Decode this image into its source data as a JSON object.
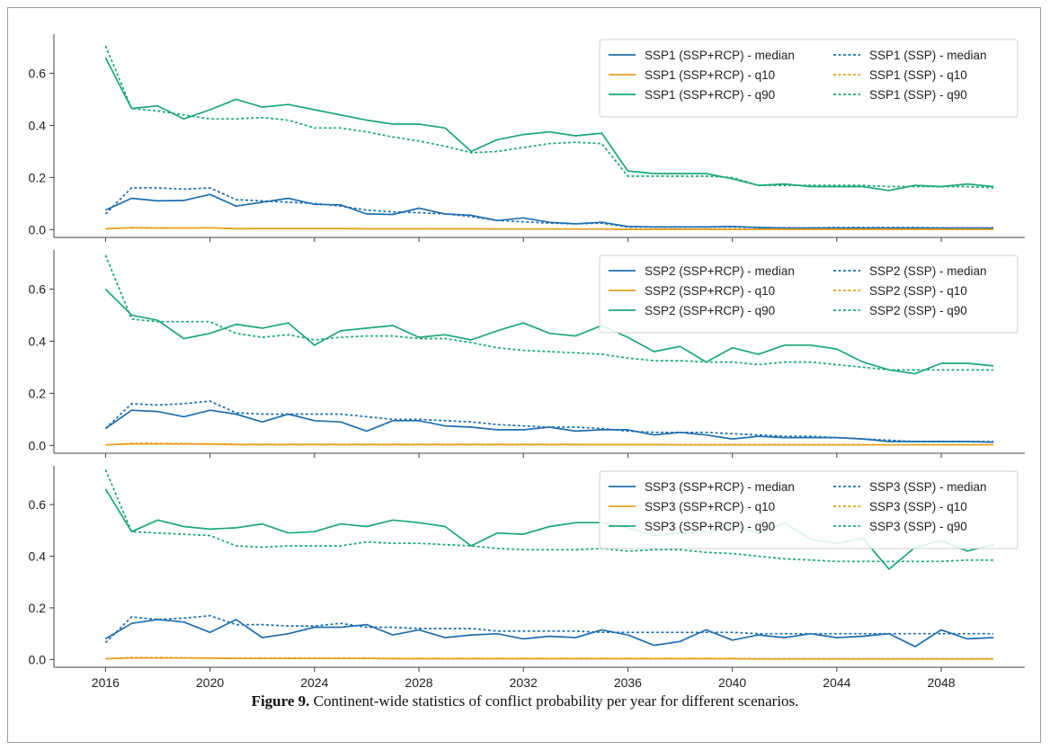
{
  "caption": {
    "label": "Figure 9.",
    "text": "Continent-wide statistics of conflict probability per year for different scenarios."
  },
  "colors": {
    "median": "#1f6fb0",
    "q10": "#e69f1c",
    "q90": "#1aa878"
  },
  "chart_data": [
    {
      "type": "line",
      "title": "",
      "xlabel": "",
      "ylabel": "",
      "x": [
        2016,
        2017,
        2018,
        2019,
        2020,
        2021,
        2022,
        2023,
        2024,
        2025,
        2026,
        2027,
        2028,
        2029,
        2030,
        2031,
        2032,
        2033,
        2034,
        2035,
        2036,
        2037,
        2038,
        2039,
        2040,
        2041,
        2042,
        2043,
        2044,
        2045,
        2046,
        2047,
        2048,
        2049,
        2050
      ],
      "xlim": [
        2014.3,
        2051.2
      ],
      "ylim": [
        -0.03,
        0.75
      ],
      "xticks": [
        2016,
        2020,
        2024,
        2028,
        2032,
        2036,
        2040,
        2044,
        2048
      ],
      "yticks": [
        0.0,
        0.2,
        0.4,
        0.6
      ],
      "ytick_labels": [
        "0.0",
        "0.2",
        "0.4",
        "0.6"
      ],
      "legend_position": "top-right",
      "series": [
        {
          "name": "SSP1 (SSP+RCP) - median",
          "style": "solid",
          "stat": "median",
          "values": [
            0.075,
            0.12,
            0.11,
            0.112,
            0.135,
            0.09,
            0.105,
            0.12,
            0.097,
            0.095,
            0.06,
            0.058,
            0.082,
            0.06,
            0.055,
            0.035,
            0.045,
            0.028,
            0.022,
            0.028,
            0.012,
            0.01,
            0.01,
            0.01,
            0.012,
            0.008,
            0.006,
            0.006,
            0.006,
            0.006,
            0.006,
            0.006,
            0.006,
            0.006,
            0.006
          ]
        },
        {
          "name": "SSP1 (SSP+RCP) - q10",
          "style": "solid",
          "stat": "q10",
          "values": [
            0.003,
            0.007,
            0.006,
            0.006,
            0.007,
            0.003,
            0.004,
            0.004,
            0.004,
            0.004,
            0.003,
            0.003,
            0.003,
            0.003,
            0.003,
            0.002,
            0.002,
            0.002,
            0.002,
            0.002,
            0.001,
            0.001,
            0.001,
            0.001,
            0.001,
            0.001,
            0.001,
            0.001,
            0.001,
            0.001,
            0.001,
            0.001,
            0.001,
            0.001,
            0.001
          ]
        },
        {
          "name": "SSP1 (SSP+RCP) - q90",
          "style": "solid",
          "stat": "q90",
          "values": [
            0.66,
            0.465,
            0.475,
            0.425,
            0.46,
            0.5,
            0.47,
            0.48,
            0.46,
            0.44,
            0.42,
            0.405,
            0.405,
            0.39,
            0.3,
            0.345,
            0.365,
            0.375,
            0.36,
            0.37,
            0.225,
            0.215,
            0.215,
            0.215,
            0.195,
            0.17,
            0.175,
            0.165,
            0.165,
            0.165,
            0.15,
            0.17,
            0.165,
            0.175,
            0.165
          ]
        },
        {
          "name": "SSP1 (SSP) - median",
          "style": "dashed",
          "stat": "median",
          "values": [
            0.06,
            0.16,
            0.16,
            0.155,
            0.16,
            0.115,
            0.11,
            0.105,
            0.1,
            0.09,
            0.075,
            0.068,
            0.065,
            0.06,
            0.05,
            0.035,
            0.03,
            0.025,
            0.022,
            0.025,
            0.01,
            0.01,
            0.01,
            0.01,
            0.01,
            0.008,
            0.007,
            0.007,
            0.008,
            0.008,
            0.008,
            0.008,
            0.007,
            0.007,
            0.007
          ]
        },
        {
          "name": "SSP1 (SSP) - q10",
          "style": "dashed",
          "stat": "q10",
          "values": [
            0.003,
            0.008,
            0.007,
            0.007,
            0.007,
            0.004,
            0.004,
            0.004,
            0.004,
            0.004,
            0.003,
            0.003,
            0.003,
            0.003,
            0.003,
            0.002,
            0.002,
            0.002,
            0.002,
            0.002,
            0.001,
            0.001,
            0.001,
            0.001,
            0.001,
            0.001,
            0.001,
            0.001,
            0.001,
            0.001,
            0.001,
            0.001,
            0.001,
            0.001,
            0.001
          ]
        },
        {
          "name": "SSP1 (SSP) - q90",
          "style": "dashed",
          "stat": "q90",
          "values": [
            0.705,
            0.465,
            0.455,
            0.44,
            0.425,
            0.425,
            0.43,
            0.42,
            0.39,
            0.39,
            0.375,
            0.355,
            0.34,
            0.32,
            0.295,
            0.3,
            0.315,
            0.33,
            0.335,
            0.33,
            0.205,
            0.205,
            0.205,
            0.205,
            0.2,
            0.17,
            0.17,
            0.17,
            0.17,
            0.17,
            0.165,
            0.165,
            0.165,
            0.165,
            0.16
          ]
        }
      ]
    },
    {
      "type": "line",
      "title": "",
      "xlabel": "",
      "ylabel": "",
      "x": [
        2016,
        2017,
        2018,
        2019,
        2020,
        2021,
        2022,
        2023,
        2024,
        2025,
        2026,
        2027,
        2028,
        2029,
        2030,
        2031,
        2032,
        2033,
        2034,
        2035,
        2036,
        2037,
        2038,
        2039,
        2040,
        2041,
        2042,
        2043,
        2044,
        2045,
        2046,
        2047,
        2048,
        2049,
        2050
      ],
      "xlim": [
        2014.3,
        2051.2
      ],
      "ylim": [
        -0.03,
        0.75
      ],
      "xticks": [
        2016,
        2020,
        2024,
        2028,
        2032,
        2036,
        2040,
        2044,
        2048
      ],
      "yticks": [
        0.0,
        0.2,
        0.4,
        0.6
      ],
      "ytick_labels": [
        "0.0",
        "0.2",
        "0.4",
        "0.6"
      ],
      "legend_position": "top-right",
      "series": [
        {
          "name": "SSP2 (SSP+RCP) - median",
          "style": "solid",
          "stat": "median",
          "values": [
            0.065,
            0.135,
            0.13,
            0.11,
            0.135,
            0.12,
            0.09,
            0.12,
            0.095,
            0.09,
            0.055,
            0.095,
            0.095,
            0.075,
            0.07,
            0.06,
            0.06,
            0.07,
            0.055,
            0.06,
            0.06,
            0.04,
            0.05,
            0.04,
            0.025,
            0.035,
            0.03,
            0.03,
            0.03,
            0.025,
            0.015,
            0.015,
            0.015,
            0.015,
            0.012
          ]
        },
        {
          "name": "SSP2 (SSP+RCP) - q10",
          "style": "solid",
          "stat": "q10",
          "values": [
            0.002,
            0.006,
            0.006,
            0.006,
            0.005,
            0.003,
            0.003,
            0.003,
            0.003,
            0.003,
            0.003,
            0.003,
            0.003,
            0.003,
            0.003,
            0.003,
            0.003,
            0.003,
            0.003,
            0.003,
            0.003,
            0.003,
            0.002,
            0.002,
            0.002,
            0.002,
            0.002,
            0.002,
            0.002,
            0.002,
            0.002,
            0.002,
            0.002,
            0.002,
            0.002
          ]
        },
        {
          "name": "SSP2 (SSP+RCP) - q90",
          "style": "solid",
          "stat": "q90",
          "values": [
            0.6,
            0.5,
            0.48,
            0.41,
            0.43,
            0.465,
            0.45,
            0.47,
            0.385,
            0.44,
            0.45,
            0.46,
            0.415,
            0.425,
            0.405,
            0.44,
            0.47,
            0.43,
            0.42,
            0.46,
            0.415,
            0.36,
            0.38,
            0.32,
            0.375,
            0.35,
            0.385,
            0.385,
            0.37,
            0.32,
            0.29,
            0.275,
            0.315,
            0.315,
            0.305
          ]
        },
        {
          "name": "SSP2 (SSP) - median",
          "style": "dashed",
          "stat": "median",
          "values": [
            0.065,
            0.16,
            0.155,
            0.16,
            0.17,
            0.125,
            0.12,
            0.12,
            0.12,
            0.12,
            0.11,
            0.1,
            0.1,
            0.095,
            0.09,
            0.08,
            0.075,
            0.07,
            0.07,
            0.065,
            0.055,
            0.05,
            0.05,
            0.05,
            0.045,
            0.04,
            0.035,
            0.035,
            0.03,
            0.025,
            0.02,
            0.015,
            0.015,
            0.015,
            0.015
          ]
        },
        {
          "name": "SSP2 (SSP) - q10",
          "style": "dashed",
          "stat": "q10",
          "values": [
            0.002,
            0.008,
            0.008,
            0.007,
            0.006,
            0.004,
            0.004,
            0.004,
            0.004,
            0.004,
            0.004,
            0.004,
            0.004,
            0.004,
            0.004,
            0.004,
            0.004,
            0.004,
            0.004,
            0.003,
            0.003,
            0.003,
            0.003,
            0.003,
            0.003,
            0.003,
            0.003,
            0.003,
            0.003,
            0.003,
            0.002,
            0.002,
            0.002,
            0.002,
            0.002
          ]
        },
        {
          "name": "SSP2 (SSP) - q90",
          "style": "dashed",
          "stat": "q90",
          "values": [
            0.73,
            0.485,
            0.475,
            0.475,
            0.475,
            0.43,
            0.415,
            0.425,
            0.405,
            0.415,
            0.42,
            0.42,
            0.41,
            0.41,
            0.395,
            0.375,
            0.365,
            0.36,
            0.355,
            0.35,
            0.335,
            0.325,
            0.325,
            0.32,
            0.32,
            0.31,
            0.32,
            0.32,
            0.31,
            0.3,
            0.29,
            0.29,
            0.29,
            0.29,
            0.29
          ]
        }
      ]
    },
    {
      "type": "line",
      "title": "",
      "xlabel": "",
      "ylabel": "",
      "x": [
        2016,
        2017,
        2018,
        2019,
        2020,
        2021,
        2022,
        2023,
        2024,
        2025,
        2026,
        2027,
        2028,
        2029,
        2030,
        2031,
        2032,
        2033,
        2034,
        2035,
        2036,
        2037,
        2038,
        2039,
        2040,
        2041,
        2042,
        2043,
        2044,
        2045,
        2046,
        2047,
        2048,
        2049,
        2050
      ],
      "xlim": [
        2014.3,
        2051.2
      ],
      "ylim": [
        -0.03,
        0.75
      ],
      "xticks": [
        2016,
        2020,
        2024,
        2028,
        2032,
        2036,
        2040,
        2044,
        2048
      ],
      "xtick_labels": [
        "2016",
        "2020",
        "2024",
        "2028",
        "2032",
        "2036",
        "2040",
        "2044",
        "2048"
      ],
      "yticks": [
        0.0,
        0.2,
        0.4,
        0.6
      ],
      "ytick_labels": [
        "0.0",
        "0.2",
        "0.4",
        "0.6"
      ],
      "legend_position": "top-right",
      "series": [
        {
          "name": "SSP3 (SSP+RCP) - median",
          "style": "solid",
          "stat": "median",
          "values": [
            0.08,
            0.14,
            0.155,
            0.145,
            0.105,
            0.155,
            0.085,
            0.1,
            0.125,
            0.125,
            0.135,
            0.095,
            0.115,
            0.085,
            0.095,
            0.1,
            0.08,
            0.09,
            0.085,
            0.115,
            0.095,
            0.055,
            0.07,
            0.115,
            0.075,
            0.095,
            0.085,
            0.1,
            0.085,
            0.09,
            0.1,
            0.05,
            0.115,
            0.08,
            0.085
          ]
        },
        {
          "name": "SSP3 (SSP+RCP) - q10",
          "style": "solid",
          "stat": "q10",
          "values": [
            0.003,
            0.006,
            0.006,
            0.006,
            0.005,
            0.004,
            0.004,
            0.004,
            0.004,
            0.004,
            0.004,
            0.003,
            0.003,
            0.003,
            0.003,
            0.003,
            0.003,
            0.003,
            0.003,
            0.003,
            0.003,
            0.003,
            0.003,
            0.003,
            0.003,
            0.002,
            0.002,
            0.002,
            0.002,
            0.002,
            0.002,
            0.002,
            0.002,
            0.002,
            0.002
          ]
        },
        {
          "name": "SSP3 (SSP+RCP) - q90",
          "style": "solid",
          "stat": "q90",
          "values": [
            0.66,
            0.495,
            0.54,
            0.515,
            0.505,
            0.51,
            0.525,
            0.49,
            0.495,
            0.525,
            0.515,
            0.54,
            0.53,
            0.515,
            0.44,
            0.49,
            0.485,
            0.515,
            0.53,
            0.53,
            0.51,
            0.48,
            0.49,
            0.495,
            0.52,
            0.49,
            0.53,
            0.465,
            0.45,
            0.47,
            0.35,
            0.435,
            0.46,
            0.42,
            0.445
          ]
        },
        {
          "name": "SSP3 (SSP) - median",
          "style": "dashed",
          "stat": "median",
          "values": [
            0.065,
            0.165,
            0.155,
            0.16,
            0.17,
            0.135,
            0.135,
            0.13,
            0.13,
            0.14,
            0.125,
            0.125,
            0.12,
            0.12,
            0.12,
            0.11,
            0.11,
            0.11,
            0.11,
            0.105,
            0.105,
            0.105,
            0.105,
            0.105,
            0.105,
            0.1,
            0.1,
            0.1,
            0.1,
            0.1,
            0.1,
            0.1,
            0.1,
            0.1,
            0.1
          ]
        },
        {
          "name": "SSP3 (SSP) - q10",
          "style": "dashed",
          "stat": "q10",
          "values": [
            0.003,
            0.008,
            0.008,
            0.007,
            0.006,
            0.005,
            0.005,
            0.005,
            0.005,
            0.005,
            0.005,
            0.004,
            0.004,
            0.004,
            0.004,
            0.004,
            0.004,
            0.004,
            0.004,
            0.004,
            0.004,
            0.004,
            0.004,
            0.004,
            0.004,
            0.003,
            0.003,
            0.003,
            0.003,
            0.003,
            0.003,
            0.003,
            0.003,
            0.003,
            0.003
          ]
        },
        {
          "name": "SSP3 (SSP) - q90",
          "style": "dashed",
          "stat": "q90",
          "values": [
            0.735,
            0.495,
            0.49,
            0.485,
            0.48,
            0.44,
            0.435,
            0.44,
            0.44,
            0.44,
            0.455,
            0.45,
            0.45,
            0.445,
            0.44,
            0.43,
            0.425,
            0.425,
            0.425,
            0.43,
            0.42,
            0.425,
            0.425,
            0.415,
            0.41,
            0.4,
            0.39,
            0.385,
            0.38,
            0.38,
            0.38,
            0.38,
            0.38,
            0.385,
            0.385
          ]
        }
      ]
    }
  ]
}
